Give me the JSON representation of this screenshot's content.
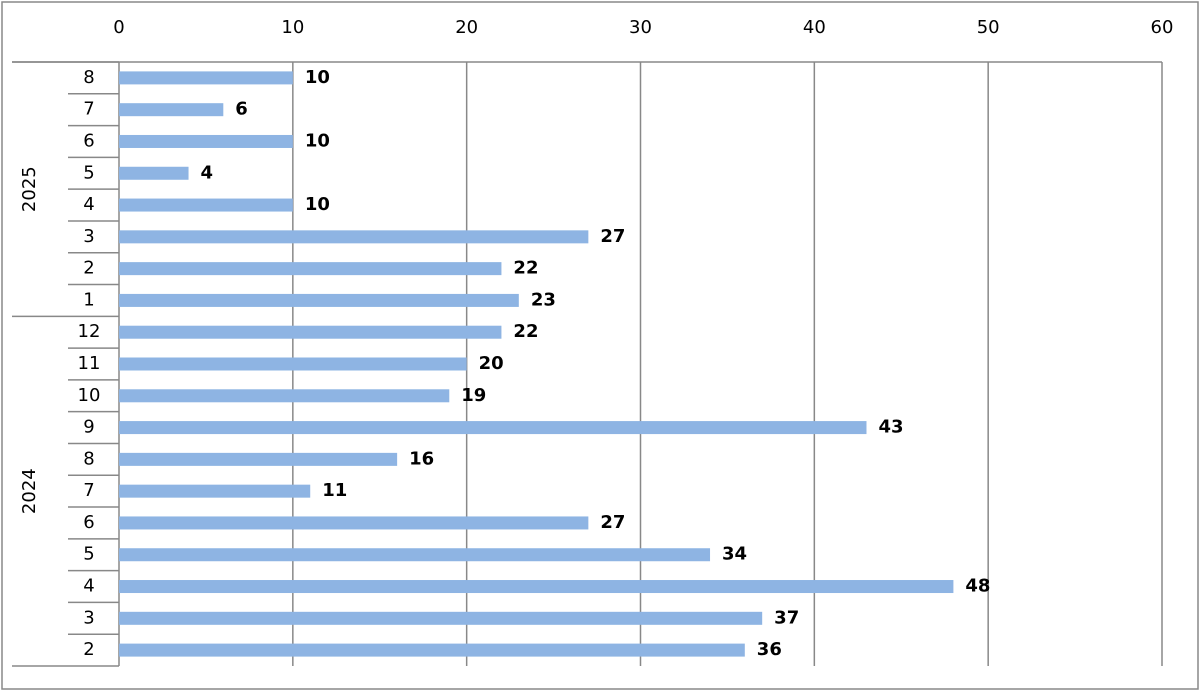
{
  "chart_data": {
    "type": "bar",
    "orientation": "horizontal",
    "color": "#8eb4e3",
    "groups": [
      {
        "label": "2025",
        "categories": [
          "8",
          "7",
          "6",
          "5",
          "4",
          "3",
          "2",
          "1"
        ],
        "values": [
          10,
          6,
          10,
          4,
          10,
          27,
          22,
          23
        ]
      },
      {
        "label": "2024",
        "categories": [
          "12",
          "11",
          "10",
          "9",
          "8",
          "7",
          "6",
          "5",
          "4",
          "3",
          "2"
        ],
        "values": [
          22,
          20,
          19,
          43,
          16,
          11,
          27,
          34,
          48,
          37,
          36
        ]
      }
    ],
    "xlim": [
      0,
      60
    ],
    "xticks": [
      0,
      10,
      20,
      30,
      40,
      50,
      60
    ],
    "grid": true
  }
}
